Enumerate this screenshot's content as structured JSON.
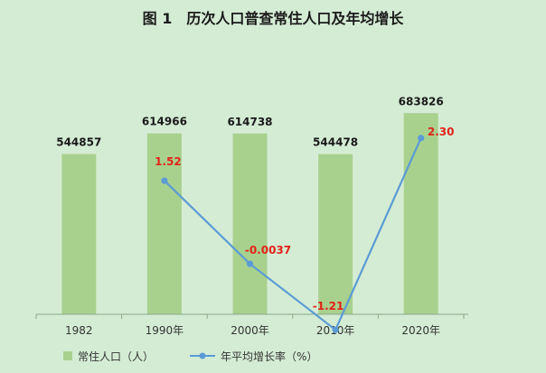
{
  "chart_data": {
    "type": "bar",
    "title": "图 1　历次人口普查常住人口及年均增长",
    "categories": [
      "1982",
      "1990年",
      "2000年",
      "2010年",
      "2020年"
    ],
    "series": [
      {
        "name": "常住人口（人）",
        "type": "bar",
        "values": [
          544857,
          614966,
          614738,
          544478,
          683826
        ]
      },
      {
        "name": "年平均增长率（%）",
        "type": "line",
        "values": [
          null,
          1.52,
          -0.0037,
          -1.21,
          2.3
        ],
        "labels": [
          "",
          "1.52",
          "-0.0037",
          "-1.21",
          "2.30"
        ]
      }
    ],
    "legend_position": "bottom",
    "grid": false,
    "colors": {
      "bar": "#a9d18e",
      "line": "#5b9bd5",
      "line_label": "#e2231a",
      "background": "#d4ecd4"
    }
  }
}
